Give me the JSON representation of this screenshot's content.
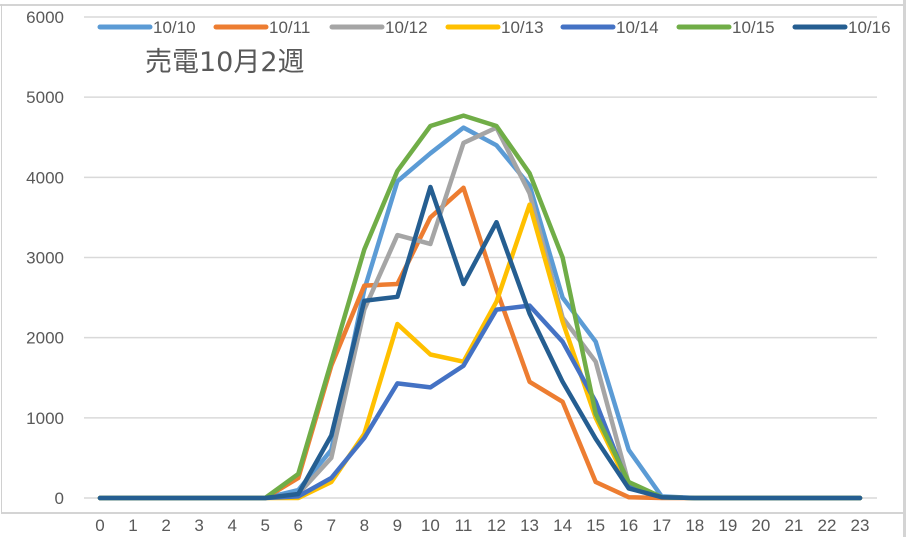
{
  "chart_data": {
    "type": "line",
    "title": "売電10月2週",
    "xlabel": "",
    "ylabel": "",
    "x": [
      0,
      1,
      2,
      3,
      4,
      5,
      6,
      7,
      8,
      9,
      10,
      11,
      12,
      13,
      14,
      15,
      16,
      17,
      18,
      19,
      20,
      21,
      22,
      23
    ],
    "ylim": [
      0,
      6000
    ],
    "yticks": [
      0,
      1000,
      2000,
      3000,
      4000,
      5000,
      6000
    ],
    "grid": "horizontal",
    "legend_position": "top",
    "series": [
      {
        "name": "10/10",
        "color": "#5B9BD5",
        "values": [
          0,
          0,
          0,
          0,
          0,
          0,
          100,
          600,
          2600,
          3950,
          4300,
          4620,
          4400,
          3900,
          2500,
          1950,
          600,
          20,
          0,
          0,
          0,
          0,
          0,
          0
        ]
      },
      {
        "name": "10/11",
        "color": "#ED7D31",
        "values": [
          0,
          0,
          0,
          0,
          0,
          0,
          250,
          1650,
          2650,
          2670,
          3500,
          3870,
          2600,
          1450,
          1200,
          200,
          10,
          0,
          0,
          0,
          0,
          0,
          0,
          0
        ]
      },
      {
        "name": "10/12",
        "color": "#A5A5A5",
        "values": [
          0,
          0,
          0,
          0,
          0,
          0,
          50,
          500,
          2350,
          3280,
          3170,
          4430,
          4620,
          3800,
          2250,
          1700,
          180,
          10,
          0,
          0,
          0,
          0,
          0,
          0
        ]
      },
      {
        "name": "10/13",
        "color": "#FFC000",
        "values": [
          0,
          0,
          0,
          0,
          0,
          0,
          0,
          200,
          800,
          2170,
          1790,
          1700,
          2450,
          3660,
          2200,
          1000,
          150,
          10,
          0,
          0,
          0,
          0,
          0,
          0
        ]
      },
      {
        "name": "10/14",
        "color": "#4472C4",
        "values": [
          0,
          0,
          0,
          0,
          0,
          0,
          20,
          250,
          750,
          1430,
          1380,
          1650,
          2350,
          2400,
          1950,
          1200,
          150,
          10,
          0,
          0,
          0,
          0,
          0,
          0
        ]
      },
      {
        "name": "10/15",
        "color": "#70AD47",
        "values": [
          0,
          0,
          0,
          0,
          0,
          0,
          300,
          1700,
          3100,
          4080,
          4640,
          4770,
          4640,
          4050,
          3000,
          1050,
          200,
          10,
          0,
          0,
          0,
          0,
          0,
          0
        ]
      },
      {
        "name": "10/16",
        "color": "#255E91",
        "values": [
          0,
          0,
          0,
          0,
          0,
          0,
          50,
          780,
          2460,
          2510,
          3880,
          2670,
          3440,
          2300,
          1450,
          740,
          120,
          10,
          0,
          0,
          0,
          0,
          0,
          0
        ]
      }
    ]
  },
  "axis": {
    "y_labels": [
      "0",
      "1000",
      "2000",
      "3000",
      "4000",
      "5000",
      "6000"
    ],
    "x_labels": [
      "0",
      "1",
      "2",
      "3",
      "4",
      "5",
      "6",
      "7",
      "8",
      "9",
      "10",
      "11",
      "12",
      "13",
      "14",
      "15",
      "16",
      "17",
      "18",
      "19",
      "20",
      "21",
      "22",
      "23"
    ]
  },
  "colors": {
    "gridline": "#D9D9D9",
    "text": "#595959",
    "background": "#FFFFFF"
  }
}
